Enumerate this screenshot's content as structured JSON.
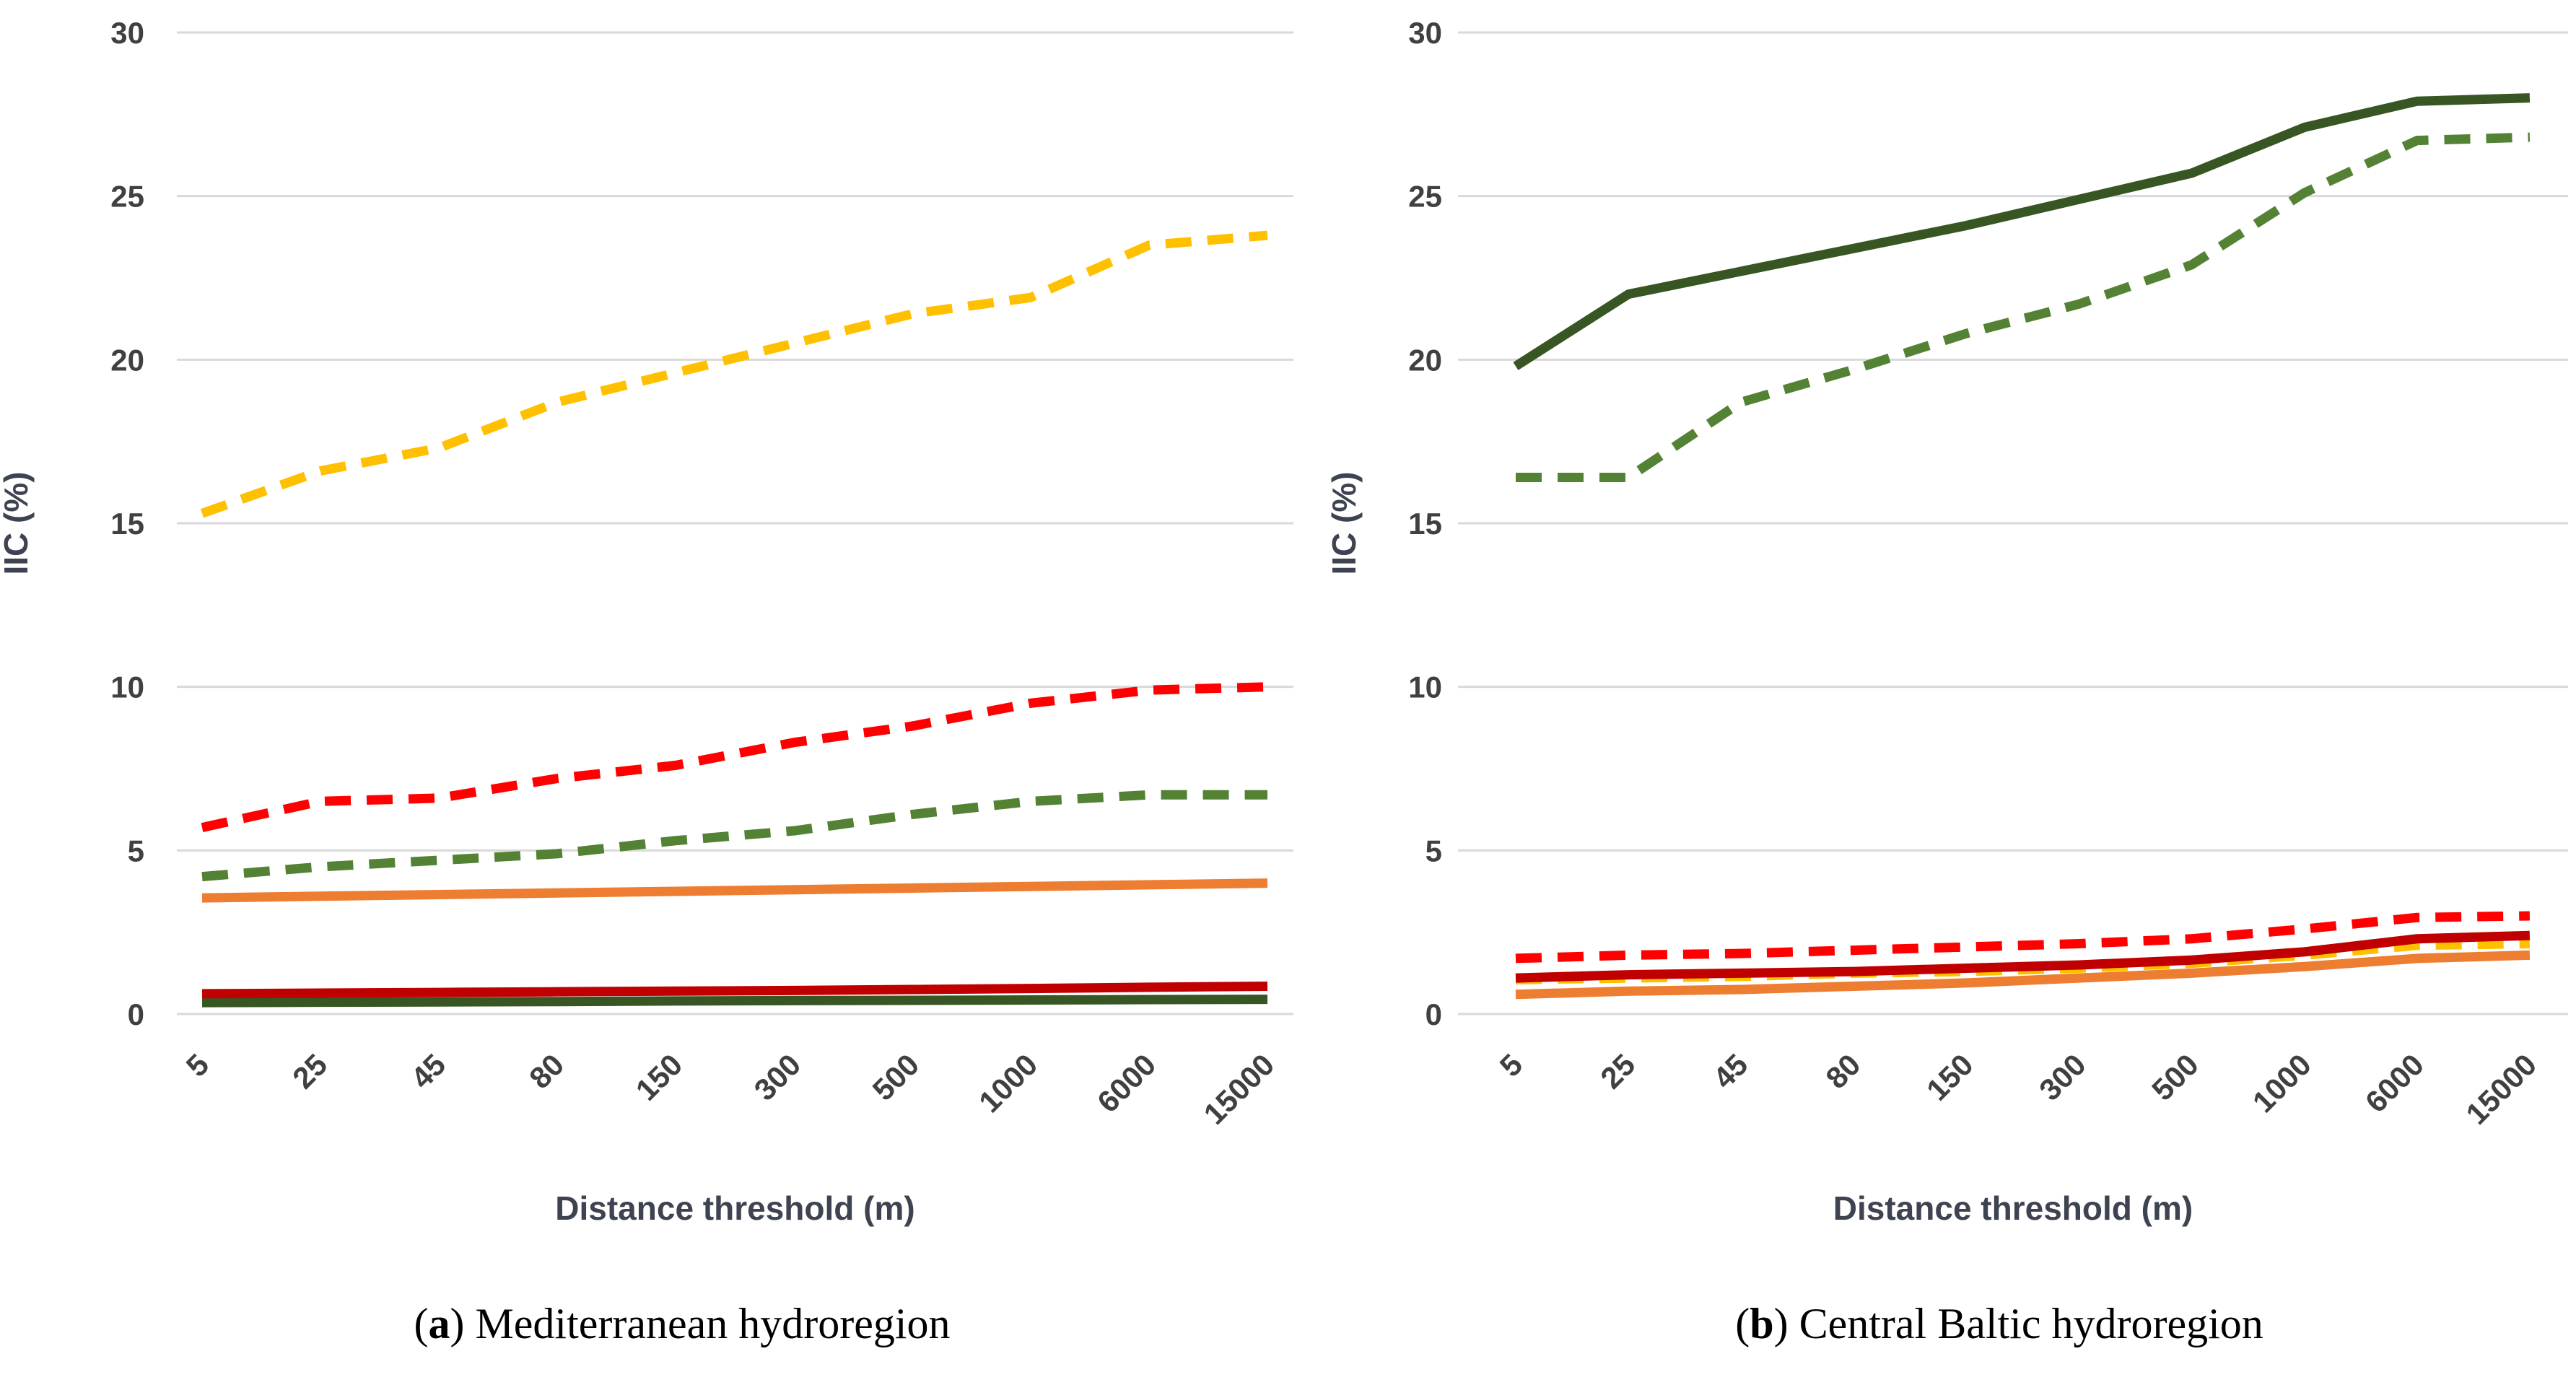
{
  "figure": {
    "background": "#ffffff",
    "legend": "none"
  },
  "palette": {
    "gold": "#FFC000",
    "red": "#FF0000",
    "dark_red": "#C00000",
    "orange": "#ED7D31",
    "green": "#548235",
    "dark_green": "#375623",
    "gridline": "#D9D9D9",
    "tick_text": "#404040",
    "axis_title_text": "#3d4350",
    "caption_text": "#000000"
  },
  "chart_data": [
    {
      "panel": "a",
      "type": "line",
      "title": "",
      "xlabel": "Distance threshold (m)",
      "ylabel": "IIC (%)",
      "ylim": [
        0,
        30
      ],
      "yticks": [
        0,
        5,
        10,
        15,
        20,
        25,
        30
      ],
      "grid": "horizontal",
      "legend_position": "none",
      "categories": [
        "5",
        "25",
        "45",
        "80",
        "150",
        "300",
        "500",
        "1000",
        "6000",
        "15000"
      ],
      "series": [
        {
          "name": "green-dashed",
          "color": "green",
          "style": "dashed",
          "values": [
            4.2,
            4.5,
            4.7,
            4.9,
            5.3,
            5.6,
            6.1,
            6.5,
            6.7,
            6.7
          ]
        },
        {
          "name": "orange-solid",
          "color": "orange",
          "style": "solid",
          "values": [
            3.55,
            3.6,
            3.65,
            3.7,
            3.75,
            3.8,
            3.85,
            3.9,
            3.95,
            4.0
          ]
        },
        {
          "name": "yellow-dashed",
          "color": "gold",
          "style": "dashed",
          "values": [
            15.3,
            16.6,
            17.3,
            18.7,
            19.6,
            20.5,
            21.4,
            21.9,
            23.5,
            23.8
          ]
        },
        {
          "name": "red-dashed",
          "color": "red",
          "style": "dashed",
          "values": [
            5.7,
            6.5,
            6.6,
            7.2,
            7.6,
            8.3,
            8.8,
            9.5,
            9.9,
            10.0
          ]
        },
        {
          "name": "dark-green-solid",
          "color": "dark_green",
          "style": "solid",
          "values": [
            0.35,
            0.36,
            0.37,
            0.38,
            0.4,
            0.41,
            0.42,
            0.43,
            0.44,
            0.45
          ]
        },
        {
          "name": "dark-red-solid",
          "color": "dark_red",
          "style": "solid",
          "values": [
            0.62,
            0.64,
            0.66,
            0.68,
            0.7,
            0.72,
            0.75,
            0.78,
            0.82,
            0.85
          ]
        }
      ],
      "caption": {
        "open": "(",
        "letter": "a",
        "close": ") ",
        "text": "Mediterranean hydroregion"
      }
    },
    {
      "panel": "b",
      "type": "line",
      "title": "",
      "xlabel": "Distance threshold (m)",
      "ylabel": "IIC (%)",
      "ylim": [
        0,
        30
      ],
      "yticks": [
        0,
        5,
        10,
        15,
        20,
        25,
        30
      ],
      "grid": "horizontal",
      "legend_position": "none",
      "categories": [
        "5",
        "25",
        "45",
        "80",
        "150",
        "300",
        "500",
        "1000",
        "6000",
        "15000"
      ],
      "series": [
        {
          "name": "orange-solid",
          "color": "orange",
          "style": "solid",
          "values": [
            0.6,
            0.7,
            0.75,
            0.85,
            0.95,
            1.1,
            1.25,
            1.45,
            1.7,
            1.8
          ]
        },
        {
          "name": "yellow-dashed",
          "color": "gold",
          "style": "dashed",
          "values": [
            1.05,
            1.1,
            1.15,
            1.25,
            1.3,
            1.4,
            1.55,
            1.8,
            2.1,
            2.15
          ]
        },
        {
          "name": "dark-red-solid",
          "color": "dark_red",
          "style": "solid",
          "values": [
            1.1,
            1.2,
            1.25,
            1.3,
            1.4,
            1.5,
            1.65,
            1.9,
            2.3,
            2.4
          ]
        },
        {
          "name": "red-dashed",
          "color": "red",
          "style": "dashed",
          "values": [
            1.7,
            1.8,
            1.85,
            1.95,
            2.05,
            2.15,
            2.3,
            2.6,
            2.95,
            3.0
          ]
        },
        {
          "name": "green-dashed",
          "color": "green",
          "style": "dashed",
          "values": [
            16.4,
            16.4,
            18.7,
            19.7,
            20.8,
            21.7,
            22.9,
            25.1,
            26.7,
            26.8
          ]
        },
        {
          "name": "dark-green-solid",
          "color": "dark_green",
          "style": "solid",
          "values": [
            19.8,
            22.0,
            22.7,
            23.4,
            24.1,
            24.9,
            25.7,
            27.1,
            27.9,
            28.0
          ]
        }
      ],
      "caption": {
        "open": "(",
        "letter": "b",
        "close": ") ",
        "text": "Central Baltic hydroregion"
      }
    }
  ]
}
